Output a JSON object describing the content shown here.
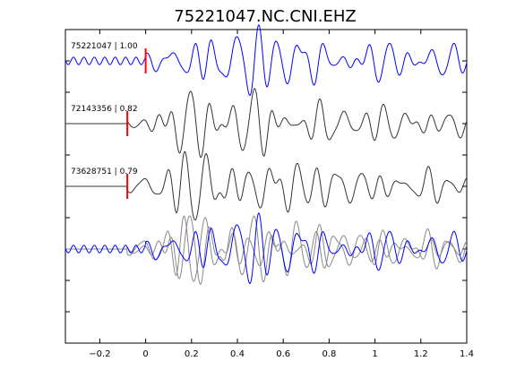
{
  "chart_data": {
    "type": "line",
    "title": "75221047.NC.CNI.EHZ",
    "xlabel": "",
    "ylabel": "",
    "xlim": [
      -0.35,
      1.4
    ],
    "ylim": [
      -4.5,
      0.5
    ],
    "grid": false,
    "x_ticks": [
      -0.2,
      0,
      0.2,
      0.4,
      0.6,
      0.8,
      1,
      1.2,
      1.4
    ],
    "x_tick_labels": [
      "−0.2",
      "0",
      "0.2",
      "0.4",
      "0.6",
      "0.8",
      "1",
      "1.2",
      "1.4"
    ],
    "colors": {
      "master": "#0000ff",
      "match": "#333333",
      "overlay_match": "#888888",
      "pick": "#ff0000"
    },
    "series": [
      {
        "label": "75221047 | 1.00",
        "event_id": "75221047",
        "correlation": 1.0,
        "offset": 0,
        "pick_time": 0.0,
        "color": "#0000ff",
        "start": -0.35
      },
      {
        "label": "72143356 | 0.82",
        "event_id": "72143356",
        "correlation": 0.82,
        "offset": -1,
        "pick_time": -0.08,
        "color": "#333333",
        "start": -0.35
      },
      {
        "label": "73628751 | 0.79",
        "event_id": "73628751",
        "correlation": 0.79,
        "offset": -2,
        "pick_time": -0.08,
        "color": "#333333",
        "start": -0.35
      },
      {
        "label": "",
        "event_id": "overlay",
        "offset": -3,
        "overlay": true
      }
    ]
  }
}
